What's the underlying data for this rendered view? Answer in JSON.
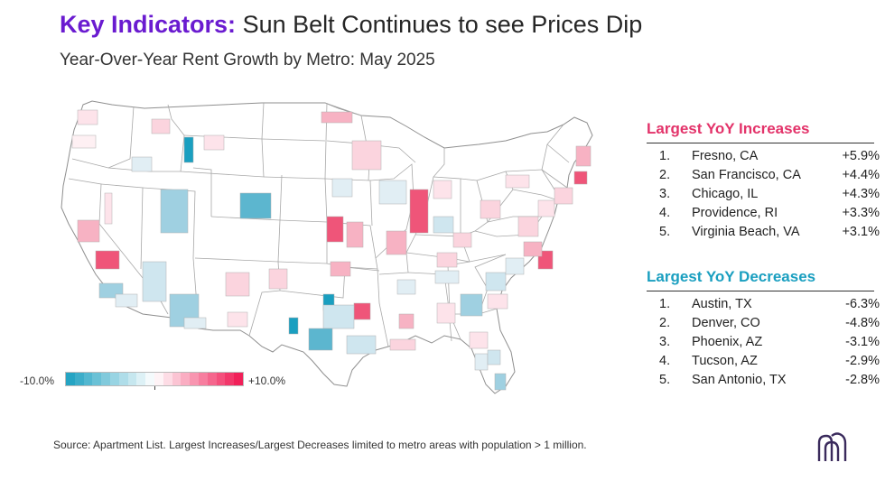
{
  "header": {
    "title_accent": "Key Indicators:",
    "title_rest": "Sun Belt Continues to see Prices Dip",
    "subtitle": "Year-Over-Year Rent Growth by Metro: May 2025"
  },
  "colors": {
    "title_accent": "#6a1bd0",
    "increase": "#f05a7e",
    "decrease": "#1a9fc0",
    "state_border": "#9a9a9a"
  },
  "chart_data": {
    "type": "choropleth-map",
    "region": "Contiguous United States",
    "metric": "Year-Over-Year Rent Growth",
    "scale_min": "-10.0%",
    "scale_max": "+10.0%",
    "scale_range": [
      -10.0,
      10.0
    ],
    "scale_midpoint": 0,
    "colormap": "diverging blue-white-red",
    "largest_increases_title": "Largest YoY Increases",
    "largest_increases": [
      {
        "rank": "1.",
        "metro": "Fresno, CA",
        "value": "+5.9%"
      },
      {
        "rank": "2.",
        "metro": "San Francisco, CA",
        "value": "+4.4%"
      },
      {
        "rank": "3.",
        "metro": "Chicago, IL",
        "value": "+4.3%"
      },
      {
        "rank": "4.",
        "metro": "Providence, RI",
        "value": "+3.3%"
      },
      {
        "rank": "5.",
        "metro": "Virginia Beach, VA",
        "value": "+3.1%"
      }
    ],
    "largest_decreases_title": "Largest YoY Decreases",
    "largest_decreases": [
      {
        "rank": "1.",
        "metro": "Austin, TX",
        "value": "-6.3%"
      },
      {
        "rank": "2.",
        "metro": "Denver, CO",
        "value": "-4.8%"
      },
      {
        "rank": "3.",
        "metro": "Phoenix, AZ",
        "value": "-3.1%"
      },
      {
        "rank": "4.",
        "metro": "Tucson, AZ",
        "value": "-2.9%"
      },
      {
        "rank": "5.",
        "metro": "San Antonio, TX",
        "value": "-2.8%"
      }
    ]
  },
  "footer": {
    "source": "Source: Apartment List. Largest Increases/Largest Decreases limited to metro areas with population > 1 million."
  },
  "logo_icon": "building-arches-logo-icon"
}
